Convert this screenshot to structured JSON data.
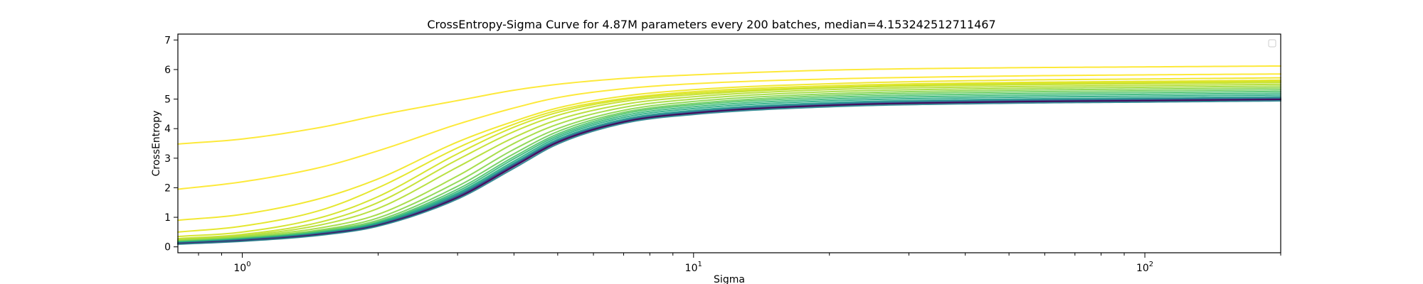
{
  "chart_data": {
    "type": "line",
    "title": "CrossEntropy-Sigma Curve for 4.87M parameters every 200 batches, median=4.153242512711467",
    "xlabel": "Sigma",
    "ylabel": "CrossEntropy",
    "x_scale": "log",
    "xlim": [
      0.72,
      200
    ],
    "ylim": [
      -0.2,
      7.2
    ],
    "x_ticks": [
      {
        "value": 1,
        "base": "10",
        "exp": "0"
      },
      {
        "value": 10,
        "base": "10",
        "exp": "1"
      },
      {
        "value": 100,
        "base": "10",
        "exp": "2"
      }
    ],
    "y_ticks": [
      0,
      1,
      2,
      3,
      4,
      5,
      6,
      7
    ],
    "grid": false,
    "legend": "top-right",
    "legend_entries": [],
    "colormap": "viridis",
    "x": [
      0.72,
      1,
      1.5,
      2,
      3,
      4,
      5,
      7,
      10,
      20,
      50,
      100,
      200
    ],
    "series": [
      {
        "color": "#fde725",
        "values": [
          3.48,
          3.65,
          4.05,
          4.45,
          4.95,
          5.3,
          5.5,
          5.7,
          5.82,
          5.98,
          6.06,
          6.09,
          6.12
        ]
      },
      {
        "color": "#fde725",
        "values": [
          1.95,
          2.2,
          2.7,
          3.25,
          4.15,
          4.7,
          5.05,
          5.35,
          5.52,
          5.68,
          5.78,
          5.82,
          5.85
        ]
      },
      {
        "color": "#f1e51d",
        "values": [
          0.9,
          1.1,
          1.65,
          2.3,
          3.55,
          4.25,
          4.7,
          5.1,
          5.32,
          5.52,
          5.64,
          5.68,
          5.72
        ]
      },
      {
        "color": "#e2e418",
        "values": [
          0.5,
          0.7,
          1.25,
          2.0,
          3.35,
          4.15,
          4.62,
          5.02,
          5.25,
          5.45,
          5.56,
          5.6,
          5.64
        ]
      },
      {
        "color": "#d2e21b",
        "values": [
          0.35,
          0.5,
          1.0,
          1.7,
          3.15,
          4.05,
          4.55,
          4.98,
          5.2,
          5.4,
          5.52,
          5.56,
          5.6
        ]
      },
      {
        "color": "#c2df23",
        "values": [
          0.28,
          0.42,
          0.85,
          1.5,
          2.95,
          3.9,
          4.45,
          4.92,
          5.15,
          5.38,
          5.48,
          5.52,
          5.56
        ]
      },
      {
        "color": "#b2dd2d",
        "values": [
          0.25,
          0.38,
          0.75,
          1.3,
          2.7,
          3.7,
          4.3,
          4.82,
          5.08,
          5.32,
          5.42,
          5.46,
          5.5
        ]
      },
      {
        "color": "#a0da39",
        "values": [
          0.22,
          0.35,
          0.65,
          1.1,
          2.4,
          3.5,
          4.15,
          4.72,
          5.0,
          5.25,
          5.36,
          5.4,
          5.44
        ]
      },
      {
        "color": "#86d549",
        "values": [
          0.2,
          0.32,
          0.58,
          0.98,
          2.2,
          3.3,
          4.0,
          4.62,
          4.92,
          5.18,
          5.3,
          5.34,
          5.38
        ]
      },
      {
        "color": "#6ccd5a",
        "values": [
          0.18,
          0.3,
          0.55,
          0.9,
          2.05,
          3.15,
          3.9,
          4.55,
          4.85,
          5.12,
          5.24,
          5.28,
          5.32
        ]
      },
      {
        "color": "#4ec36b",
        "values": [
          0.17,
          0.28,
          0.52,
          0.85,
          1.95,
          3.05,
          3.82,
          4.5,
          4.8,
          5.06,
          5.18,
          5.22,
          5.26
        ]
      },
      {
        "color": "#35b779",
        "values": [
          0.16,
          0.27,
          0.5,
          0.82,
          1.88,
          2.98,
          3.76,
          4.44,
          4.74,
          5.0,
          5.12,
          5.16,
          5.2
        ]
      },
      {
        "color": "#25ab82",
        "values": [
          0.15,
          0.26,
          0.48,
          0.8,
          1.82,
          2.9,
          3.7,
          4.38,
          4.68,
          4.94,
          5.06,
          5.1,
          5.14
        ]
      },
      {
        "color": "#1f9e89",
        "values": [
          0.14,
          0.25,
          0.47,
          0.78,
          1.78,
          2.84,
          3.64,
          4.32,
          4.62,
          4.88,
          5.0,
          5.04,
          5.08
        ]
      },
      {
        "color": "#25838e",
        "values": [
          0.13,
          0.24,
          0.46,
          0.76,
          1.74,
          2.8,
          3.6,
          4.28,
          4.58,
          4.84,
          4.96,
          5.0,
          5.04
        ]
      },
      {
        "color": "#2d708e",
        "values": [
          0.12,
          0.23,
          0.45,
          0.75,
          1.72,
          2.78,
          3.58,
          4.26,
          4.56,
          4.82,
          4.94,
          4.98,
          5.02
        ]
      },
      {
        "color": "#3b528b",
        "values": [
          0.12,
          0.22,
          0.44,
          0.74,
          1.7,
          2.76,
          3.56,
          4.24,
          4.54,
          4.8,
          4.92,
          4.96,
          5.0
        ]
      },
      {
        "color": "#472d7b",
        "values": [
          0.11,
          0.21,
          0.43,
          0.73,
          1.68,
          2.74,
          3.55,
          4.23,
          4.53,
          4.79,
          4.91,
          4.95,
          4.99
        ]
      },
      {
        "color": "#440154",
        "values": [
          0.1,
          0.2,
          0.42,
          0.72,
          1.66,
          2.72,
          3.53,
          4.22,
          4.52,
          4.78,
          4.9,
          4.94,
          4.98
        ]
      },
      {
        "color": "#26828e",
        "values": [
          0.09,
          0.19,
          0.4,
          0.7,
          1.62,
          2.66,
          3.48,
          4.18,
          4.48,
          4.74,
          4.86,
          4.9,
          4.94
        ]
      }
    ]
  }
}
